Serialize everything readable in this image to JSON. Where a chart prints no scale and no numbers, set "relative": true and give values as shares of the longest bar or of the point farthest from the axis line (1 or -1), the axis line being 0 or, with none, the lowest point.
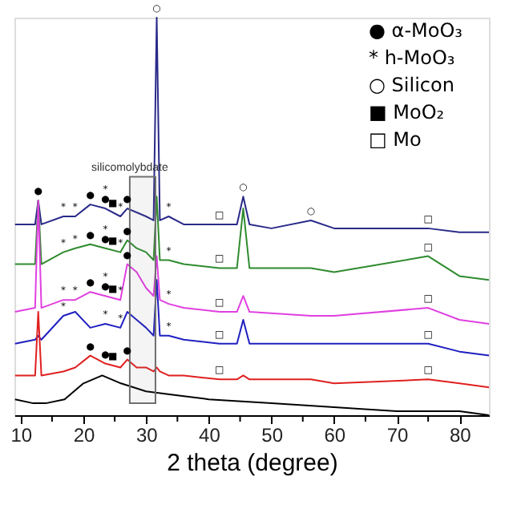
{
  "chart_data": {
    "type": "line",
    "relative": true,
    "xlabel": "2 theta (degree)",
    "xlim": [
      9,
      84.7
    ],
    "xticks": [
      10,
      {
        "value": 15,
        "label": null
      },
      20,
      {
        "value": 25,
        "label": null
      },
      30,
      {
        "value": 35,
        "label": null
      },
      40,
      {
        "value": 45,
        "label": null
      },
      50,
      {
        "value": 55,
        "label": null
      },
      60,
      {
        "value": 65,
        "label": null
      },
      70,
      {
        "value": 75,
        "label": null
      },
      80
    ],
    "grid": false,
    "legend": false,
    "marker": "none",
    "line_style": "solid",
    "series": [
      {
        "color": "#2a2a8a",
        "x": [
          9.1,
          12.3,
          12.8,
          13.3,
          16.8,
          18.7,
          21.1,
          23.5,
          25.9,
          27,
          28.5,
          30,
          31.2,
          31.7,
          32.2,
          33.6,
          36,
          41.7,
          44.5,
          45.5,
          46.5,
          50,
          56.3,
          60,
          65,
          75,
          80,
          84.7
        ],
        "values": [
          0.48,
          0.48,
          0.54,
          0.48,
          0.5,
          0.5,
          0.53,
          0.52,
          0.5,
          0.52,
          0.51,
          0.5,
          0.49,
          1.0,
          0.49,
          0.5,
          0.48,
          0.48,
          0.48,
          0.55,
          0.48,
          0.47,
          0.49,
          0.47,
          0.47,
          0.47,
          0.46,
          0.46
        ]
      },
      {
        "color": "#2e8b2e",
        "x": [
          9.1,
          12.3,
          12.8,
          13.3,
          16.8,
          18.7,
          21.1,
          23.5,
          25.9,
          27,
          28.5,
          30,
          31.2,
          31.7,
          32.2,
          33.6,
          36,
          41.7,
          44.5,
          45.5,
          46.5,
          56.3,
          60,
          75,
          80,
          84.7
        ],
        "values": [
          0.38,
          0.38,
          0.54,
          0.38,
          0.41,
          0.42,
          0.43,
          0.42,
          0.41,
          0.44,
          0.42,
          0.41,
          0.39,
          0.55,
          0.39,
          0.39,
          0.38,
          0.37,
          0.37,
          0.52,
          0.37,
          0.37,
          0.36,
          0.4,
          0.35,
          0.34
        ]
      },
      {
        "color": "#e040e0",
        "x": [
          9.1,
          12.3,
          12.8,
          13.3,
          16.8,
          18.7,
          21.1,
          23.5,
          25.9,
          27,
          28.5,
          30,
          31.2,
          31.7,
          32.2,
          33.6,
          36,
          41.7,
          44.5,
          45.5,
          46.5,
          56.3,
          60,
          75,
          80,
          84.7
        ],
        "values": [
          0.26,
          0.27,
          0.54,
          0.27,
          0.29,
          0.29,
          0.31,
          0.3,
          0.29,
          0.38,
          0.36,
          0.32,
          0.3,
          0.4,
          0.29,
          0.28,
          0.27,
          0.26,
          0.26,
          0.3,
          0.26,
          0.25,
          0.25,
          0.27,
          0.24,
          0.23
        ]
      },
      {
        "color": "#2020c0",
        "x": [
          9.1,
          12.3,
          12.8,
          13.3,
          16.8,
          18.7,
          21.1,
          23.5,
          25.9,
          27,
          28.5,
          30,
          31.2,
          31.7,
          32.2,
          33.6,
          36,
          41.7,
          44.5,
          45.5,
          46.5,
          56.3,
          60,
          75,
          80,
          84.7
        ],
        "values": [
          0.18,
          0.19,
          0.2,
          0.19,
          0.25,
          0.26,
          0.22,
          0.23,
          0.22,
          0.26,
          0.24,
          0.22,
          0.2,
          0.34,
          0.2,
          0.2,
          0.19,
          0.18,
          0.18,
          0.24,
          0.18,
          0.18,
          0.18,
          0.18,
          0.16,
          0.15
        ]
      },
      {
        "color": "#e02020",
        "x": [
          9.1,
          12.3,
          12.8,
          13.3,
          16.8,
          18.7,
          21.1,
          23.5,
          25.9,
          27,
          28.5,
          30,
          31.2,
          31.7,
          32.2,
          33.6,
          36,
          41.7,
          44.5,
          45.5,
          46.5,
          56.3,
          60,
          75,
          80,
          84.7
        ],
        "values": [
          0.1,
          0.1,
          0.26,
          0.1,
          0.11,
          0.12,
          0.15,
          0.13,
          0.12,
          0.14,
          0.12,
          0.12,
          0.11,
          0.12,
          0.11,
          0.1,
          0.1,
          0.09,
          0.09,
          0.1,
          0.09,
          0.09,
          0.08,
          0.09,
          0.08,
          0.07
        ]
      },
      {
        "color": "#000000",
        "x": [
          9.1,
          12,
          14,
          17,
          20,
          23,
          26,
          30,
          35,
          40,
          50,
          60,
          70,
          80,
          84.7
        ],
        "values": [
          0.04,
          0.03,
          0.03,
          0.04,
          0.08,
          0.1,
          0.08,
          0.06,
          0.05,
          0.04,
          0.03,
          0.02,
          0.01,
          0.01,
          0.0
        ]
      }
    ],
    "bands": [
      {
        "axis": "x",
        "from": 27.4,
        "to": 31.5,
        "label": "silicomolybdate",
        "color": "#707070"
      }
    ],
    "annotations": [
      "● α-MoO₃",
      "* h-MoO₃",
      "○ Silicon",
      "■ MoO₂",
      "□ Mo",
      {
        "text": "●",
        "x": 12.8,
        "y": 0.54
      },
      {
        "text": "○",
        "x": 31.7,
        "y": 1.0
      },
      {
        "text": "*",
        "x": 16.8,
        "y": 0.5
      },
      {
        "text": "*",
        "x": 18.7,
        "y": 0.5
      },
      {
        "text": "●",
        "x": 21.1,
        "y": 0.53
      },
      {
        "text": "●",
        "x": 23.5,
        "y": 0.52
      },
      {
        "text": "*",
        "x": 23.5,
        "y": 0.52
      },
      {
        "text": "■",
        "x": 24.7,
        "y": 0.51
      },
      {
        "text": "*",
        "x": 25.9,
        "y": 0.5
      },
      {
        "text": "●",
        "x": 27,
        "y": 0.52
      },
      {
        "text": "*",
        "x": 33.6,
        "y": 0.5
      },
      {
        "text": "□",
        "x": 41.7,
        "y": 0.48
      },
      {
        "text": "○",
        "x": 45.5,
        "y": 0.55
      },
      {
        "text": "○",
        "x": 56.3,
        "y": 0.49
      },
      {
        "text": "□",
        "x": 75,
        "y": 0.47
      },
      {
        "text": "*",
        "x": 16.8,
        "y": 0.41
      },
      {
        "text": "*",
        "x": 18.7,
        "y": 0.42
      },
      {
        "text": "●",
        "x": 21.1,
        "y": 0.43
      },
      {
        "text": "●",
        "x": 23.5,
        "y": 0.42
      },
      {
        "text": "*",
        "x": 23.5,
        "y": 0.42
      },
      {
        "text": "■",
        "x": 24.7,
        "y": 0.415
      },
      {
        "text": "*",
        "x": 25.9,
        "y": 0.41
      },
      {
        "text": "●",
        "x": 27,
        "y": 0.44
      },
      {
        "text": "*",
        "x": 33.6,
        "y": 0.39
      },
      {
        "text": "□",
        "x": 41.7,
        "y": 0.37
      },
      {
        "text": "□",
        "x": 75,
        "y": 0.4
      },
      {
        "text": "*",
        "x": 16.8,
        "y": 0.29
      },
      {
        "text": "*",
        "x": 18.7,
        "y": 0.29
      },
      {
        "text": "●",
        "x": 21.1,
        "y": 0.31
      },
      {
        "text": "●",
        "x": 23.5,
        "y": 0.3
      },
      {
        "text": "*",
        "x": 23.5,
        "y": 0.3
      },
      {
        "text": "■",
        "x": 24.7,
        "y": 0.295
      },
      {
        "text": "*",
        "x": 25.9,
        "y": 0.29
      },
      {
        "text": "●",
        "x": 27,
        "y": 0.38
      },
      {
        "text": "*",
        "x": 33.6,
        "y": 0.28
      },
      {
        "text": "□",
        "x": 41.7,
        "y": 0.26
      },
      {
        "text": "□",
        "x": 75,
        "y": 0.27
      },
      {
        "text": "*",
        "x": 16.8,
        "y": 0.25
      },
      {
        "text": "*",
        "x": 23.5,
        "y": 0.23
      },
      {
        "text": "*",
        "x": 25.9,
        "y": 0.22
      },
      {
        "text": "*",
        "x": 33.6,
        "y": 0.2
      },
      {
        "text": "□",
        "x": 41.7,
        "y": 0.18
      },
      {
        "text": "□",
        "x": 75,
        "y": 0.18
      },
      {
        "text": "●",
        "x": 21.1,
        "y": 0.15
      },
      {
        "text": "●",
        "x": 23.5,
        "y": 0.13
      },
      {
        "text": "■",
        "x": 24.7,
        "y": 0.125
      },
      {
        "text": "●",
        "x": 27,
        "y": 0.14
      },
      {
        "text": "□",
        "x": 41.7,
        "y": 0.09
      },
      {
        "text": "□",
        "x": 75,
        "y": 0.09
      }
    ]
  }
}
